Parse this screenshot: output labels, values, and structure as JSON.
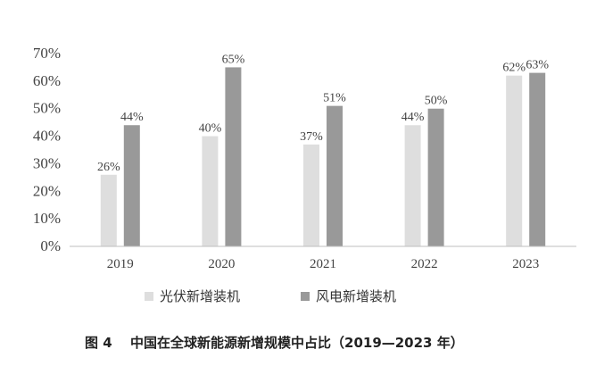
{
  "chart_data": {
    "type": "bar",
    "title": "",
    "caption_label": "图 4",
    "caption_text": "中国在全球新能源新增规模中占比（2019—2023 年）",
    "xlabel": "",
    "ylabel": "",
    "categories": [
      "2019",
      "2020",
      "2021",
      "2022",
      "2023"
    ],
    "series": [
      {
        "name": "光伏新增装机",
        "color": "#dedede",
        "values": [
          26,
          40,
          37,
          44,
          62
        ],
        "labels": [
          "26%",
          "40%",
          "37%",
          "44%",
          "62%"
        ]
      },
      {
        "name": "风电新增装机",
        "color": "#999999",
        "values": [
          44,
          65,
          51,
          50,
          63
        ],
        "labels": [
          "44%",
          "65%",
          "51%",
          "50%",
          "63%"
        ]
      }
    ],
    "ylim": [
      0,
      70
    ],
    "yticks": [
      0,
      10,
      20,
      30,
      40,
      50,
      60,
      70
    ],
    "ytick_labels": [
      "0%",
      "10%",
      "20%",
      "30%",
      "40%",
      "50%",
      "60%",
      "70%"
    ],
    "grid": false,
    "legend_position": "bottom"
  }
}
